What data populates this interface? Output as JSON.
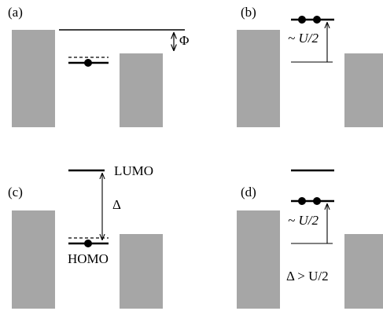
{
  "panels": [
    {
      "tag": "(a)",
      "annotations": {
        "work_function": "Φ"
      }
    },
    {
      "tag": "(b)",
      "annotations": {
        "energy_gap": "~ U/2"
      }
    },
    {
      "tag": "(c)",
      "annotations": {
        "lumo": "LUMO",
        "homo": "HOMO",
        "gap": "Δ"
      }
    },
    {
      "tag": "(d)",
      "annotations": {
        "energy_gap": "~ U/2",
        "condition": "Δ > U/2"
      }
    }
  ],
  "colors": {
    "lead_fill": "#a6a6a6",
    "line": "#000000"
  }
}
